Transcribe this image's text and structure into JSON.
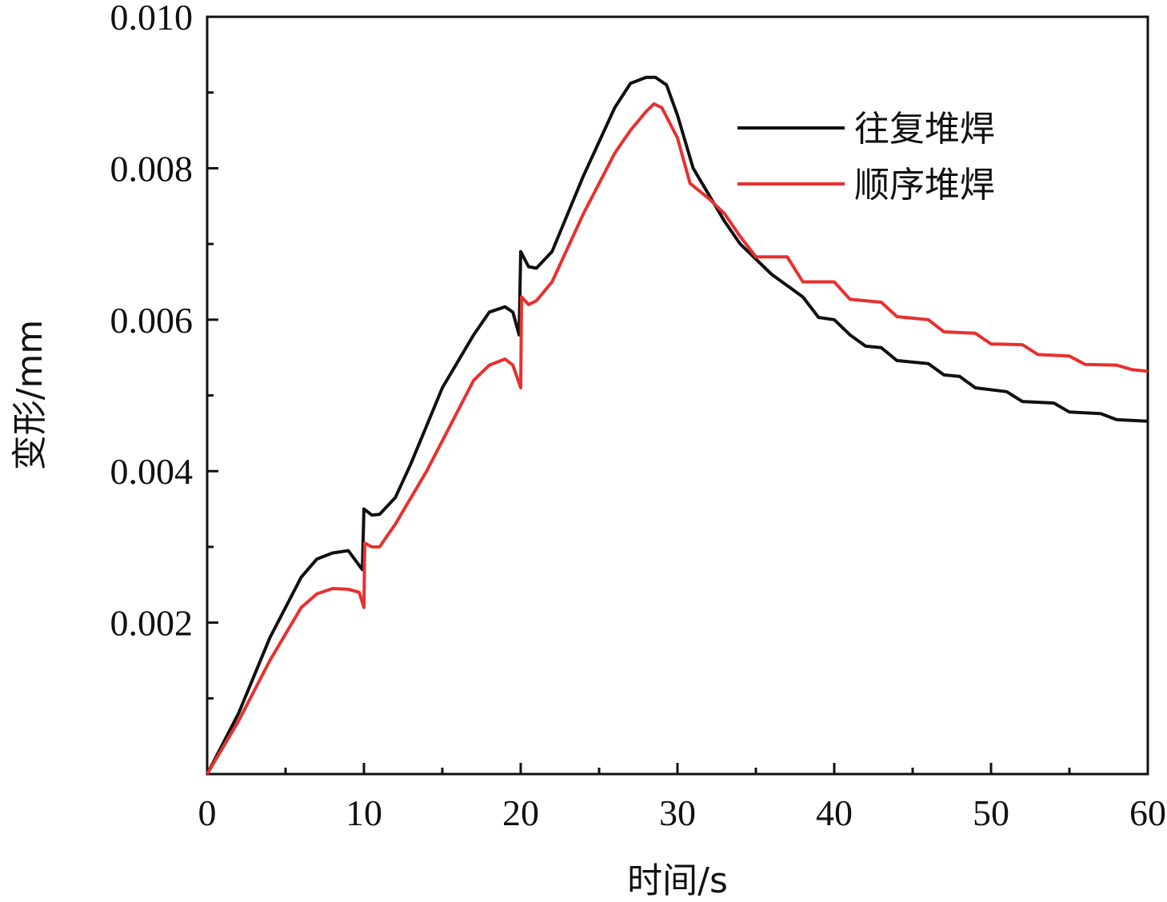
{
  "chart_data": {
    "type": "line",
    "title": "",
    "xlabel": "时间/s",
    "ylabel": "变形/mm",
    "xlim": [
      0,
      60
    ],
    "ylim": [
      0,
      0.01
    ],
    "x_ticks": [
      0,
      10,
      20,
      30,
      40,
      50,
      60
    ],
    "x_tick_labels": [
      "0",
      "10",
      "20",
      "30",
      "40",
      "50",
      "60"
    ],
    "y_ticks": [
      0.002,
      0.004,
      0.006,
      0.008,
      0.01
    ],
    "y_tick_labels": [
      "0.002",
      "0.004",
      "0.006",
      "0.008",
      "0.010"
    ],
    "grid": false,
    "legend_position": "top-right",
    "series": [
      {
        "name": "往复堆焊",
        "color": "#111111",
        "points": [
          [
            0,
            0
          ],
          [
            2,
            0.0008
          ],
          [
            4,
            0.0018
          ],
          [
            6,
            0.0026
          ],
          [
            7,
            0.00284
          ],
          [
            8,
            0.00292
          ],
          [
            9,
            0.00295
          ],
          [
            9.9,
            0.0027
          ],
          [
            10,
            0.0035
          ],
          [
            10.5,
            0.00342
          ],
          [
            11,
            0.00343
          ],
          [
            12,
            0.00365
          ],
          [
            13,
            0.0041
          ],
          [
            15,
            0.0051
          ],
          [
            17,
            0.0058
          ],
          [
            18,
            0.0061
          ],
          [
            19,
            0.00617
          ],
          [
            19.5,
            0.0061
          ],
          [
            19.9,
            0.0058
          ],
          [
            20,
            0.0069
          ],
          [
            20.5,
            0.0067
          ],
          [
            21,
            0.00668
          ],
          [
            22,
            0.0069
          ],
          [
            24,
            0.0079
          ],
          [
            26,
            0.0088
          ],
          [
            27,
            0.00912
          ],
          [
            28,
            0.0092
          ],
          [
            28.6,
            0.0092
          ],
          [
            29.3,
            0.0091
          ],
          [
            30,
            0.0087
          ],
          [
            31,
            0.008
          ],
          [
            33,
            0.0073
          ],
          [
            34,
            0.007
          ],
          [
            36,
            0.0066
          ],
          [
            38,
            0.0063
          ],
          [
            39,
            0.00603
          ],
          [
            40,
            0.006
          ],
          [
            41,
            0.0058
          ],
          [
            42,
            0.00565
          ],
          [
            43,
            0.00563
          ],
          [
            44,
            0.00546
          ],
          [
            46,
            0.00542
          ],
          [
            47,
            0.00527
          ],
          [
            48,
            0.00525
          ],
          [
            49,
            0.0051
          ],
          [
            51,
            0.00505
          ],
          [
            52,
            0.00492
          ],
          [
            54,
            0.0049
          ],
          [
            55,
            0.00478
          ],
          [
            57,
            0.00476
          ],
          [
            58,
            0.00468
          ],
          [
            60,
            0.00466
          ]
        ]
      },
      {
        "name": "顺序堆焊",
        "color": "#e8302f",
        "points": [
          [
            0,
            0
          ],
          [
            2,
            0.0007
          ],
          [
            4,
            0.0015
          ],
          [
            6,
            0.0022
          ],
          [
            7,
            0.00238
          ],
          [
            8,
            0.00245
          ],
          [
            9,
            0.00244
          ],
          [
            9.7,
            0.0024
          ],
          [
            10,
            0.0022
          ],
          [
            10.05,
            0.00305
          ],
          [
            10.5,
            0.003
          ],
          [
            11,
            0.003
          ],
          [
            12,
            0.0033
          ],
          [
            14,
            0.004
          ],
          [
            16,
            0.0048
          ],
          [
            17,
            0.0052
          ],
          [
            18,
            0.0054
          ],
          [
            19,
            0.00548
          ],
          [
            19.5,
            0.0054
          ],
          [
            20,
            0.0051
          ],
          [
            20.05,
            0.0063
          ],
          [
            20.5,
            0.0062
          ],
          [
            21,
            0.00625
          ],
          [
            22,
            0.0065
          ],
          [
            24,
            0.0074
          ],
          [
            26,
            0.0082
          ],
          [
            27,
            0.0085
          ],
          [
            28,
            0.00875
          ],
          [
            28.5,
            0.00885
          ],
          [
            29,
            0.0088
          ],
          [
            30,
            0.0084
          ],
          [
            30.8,
            0.0078
          ],
          [
            32,
            0.0076
          ],
          [
            33,
            0.0074
          ],
          [
            34,
            0.0071
          ],
          [
            35,
            0.00683
          ],
          [
            37,
            0.00683
          ],
          [
            38,
            0.0065
          ],
          [
            40,
            0.0065
          ],
          [
            41,
            0.00627
          ],
          [
            43,
            0.00623
          ],
          [
            44,
            0.00604
          ],
          [
            46,
            0.006
          ],
          [
            47,
            0.00584
          ],
          [
            49,
            0.00582
          ],
          [
            50,
            0.00568
          ],
          [
            52,
            0.00567
          ],
          [
            53,
            0.00554
          ],
          [
            55,
            0.00552
          ],
          [
            56,
            0.00541
          ],
          [
            58,
            0.0054
          ],
          [
            59,
            0.00534
          ],
          [
            60,
            0.00532
          ]
        ]
      }
    ]
  }
}
